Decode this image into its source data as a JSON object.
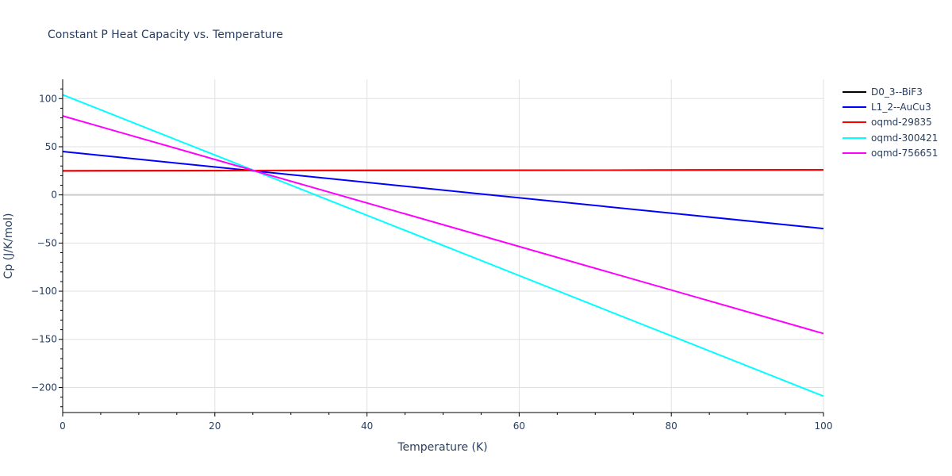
{
  "chart_data": {
    "type": "line",
    "title": "Constant P Heat Capacity vs. Temperature",
    "xlabel": "Temperature (K)",
    "ylabel": "Cp (J/K/mol)",
    "xlim": [
      0,
      100
    ],
    "ylim": [
      -226,
      120
    ],
    "x_ticks": [
      0,
      20,
      40,
      60,
      80,
      100
    ],
    "y_ticks": [
      100,
      50,
      0,
      -50,
      -100,
      -150,
      -200
    ],
    "x_tick_labels": [
      "0",
      "20",
      "40",
      "60",
      "80",
      "100"
    ],
    "y_tick_labels": [
      "100",
      "50",
      "0",
      "−50",
      "−100",
      "−150",
      "−200"
    ],
    "grid": true,
    "legend_position": "right",
    "series": [
      {
        "name": "D0_3--BiF3",
        "color": "#000000",
        "x": [
          0,
          100
        ],
        "values": [
          25,
          26
        ]
      },
      {
        "name": "L1_2--AuCu3",
        "color": "#0000ff",
        "x": [
          0,
          100
        ],
        "values": [
          45,
          -35
        ]
      },
      {
        "name": "oqmd-29835",
        "color": "#ff0000",
        "x": [
          0,
          100
        ],
        "values": [
          25,
          26
        ]
      },
      {
        "name": "oqmd-300421",
        "color": "#00ffff",
        "x": [
          0,
          100
        ],
        "values": [
          104,
          -209
        ]
      },
      {
        "name": "oqmd-756651",
        "color": "#ff00ff",
        "x": [
          0,
          100
        ],
        "values": [
          82,
          -144
        ]
      }
    ]
  }
}
